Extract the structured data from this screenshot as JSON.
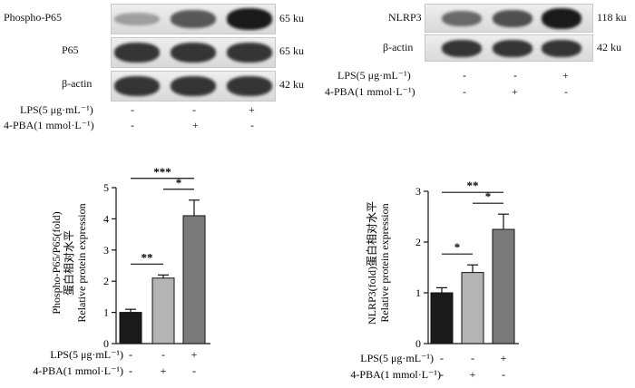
{
  "colors": {
    "bar_ctrl": "#1a1a1a",
    "bar_pba": "#b4b4b4",
    "bar_lps": "#7a7a7a",
    "band": "#141414"
  },
  "blot_left": {
    "rows": [
      {
        "label": "Phospho-P65",
        "size": "65 ku",
        "levels": [
          0.25,
          0.65,
          1.0
        ]
      },
      {
        "label": "P65",
        "size": "65 ku",
        "levels": [
          0.85,
          0.85,
          0.85
        ]
      },
      {
        "label": "β-actin",
        "size": "42 ku",
        "levels": [
          0.85,
          0.85,
          0.85
        ]
      }
    ],
    "lps_label": "LPS(5 μg·mL⁻¹)",
    "pba_label": "4-PBA(1 mmol·L⁻¹)",
    "lps_signs": [
      "-",
      "-",
      "+"
    ],
    "pba_signs": [
      "-",
      "+",
      "-"
    ]
  },
  "blot_right": {
    "rows": [
      {
        "label": "NLRP3",
        "size": "118 ku",
        "levels": [
          0.55,
          0.7,
          1.0
        ]
      },
      {
        "label": "β-actin",
        "size": "42 ku",
        "levels": [
          0.85,
          0.85,
          0.85
        ]
      }
    ],
    "lps_label": "LPS(5 μg·mL⁻¹)",
    "pba_label": "4-PBA(1 mmol·L⁻¹)",
    "lps_signs": [
      "-",
      "-",
      "+"
    ],
    "pba_signs": [
      "-",
      "+",
      "-"
    ]
  },
  "chart_data": [
    {
      "type": "bar",
      "ylabel_lines": [
        "Phospho-P65/P65(fold)",
        "蛋白相对水平",
        "Relative protein expression"
      ],
      "ylim": [
        0,
        5
      ],
      "yticks": [
        0,
        1,
        2,
        3,
        4,
        5
      ],
      "values": [
        1.0,
        2.1,
        4.1
      ],
      "errors": [
        0.1,
        0.1,
        0.5
      ],
      "lps_label": "LPS(5 μg·mL⁻¹)",
      "pba_label": "4-PBA(1 mmol·L⁻¹)",
      "lps_signs": [
        "-",
        "-",
        "+"
      ],
      "pba_signs": [
        "-",
        "+",
        "-"
      ],
      "significance": [
        {
          "from": 0,
          "to": 1,
          "label": "**"
        },
        {
          "from": 1,
          "to": 2,
          "label": "*"
        },
        {
          "from": 0,
          "to": 2,
          "label": "***"
        }
      ]
    },
    {
      "type": "bar",
      "ylabel_lines": [
        "NLRP3(fold)蛋白相对水平",
        "Relative protein expression"
      ],
      "ylim": [
        0,
        3
      ],
      "yticks": [
        0,
        1,
        2,
        3
      ],
      "values": [
        1.0,
        1.4,
        2.25
      ],
      "errors": [
        0.1,
        0.15,
        0.3
      ],
      "lps_label": "LPS(5 μg·mL⁻¹)",
      "pba_label": "4-PBA(1 mmol·L⁻¹)",
      "lps_signs": [
        "-",
        "-",
        "+"
      ],
      "pba_signs": [
        "-",
        "+",
        "-"
      ],
      "significance": [
        {
          "from": 0,
          "to": 1,
          "label": "*"
        },
        {
          "from": 1,
          "to": 2,
          "label": "*"
        },
        {
          "from": 0,
          "to": 2,
          "label": "**"
        }
      ]
    }
  ]
}
